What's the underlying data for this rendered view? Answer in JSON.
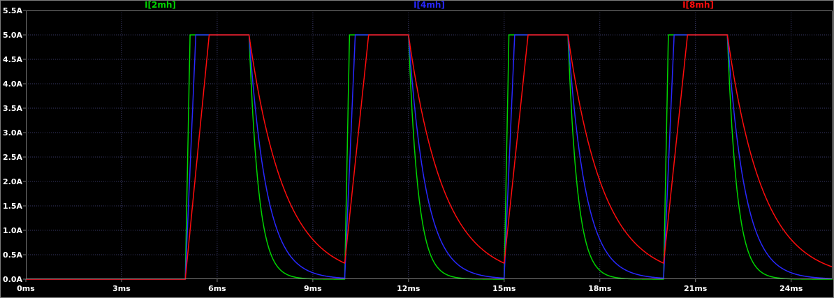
{
  "window": {
    "background": "#000000",
    "border_color": "#7d7d7d",
    "grid_color": "#3a3a68",
    "tick_color": "#7d7d7d",
    "text_color": "#ffffff"
  },
  "chart_data": {
    "type": "line",
    "title": "",
    "xlabel": "",
    "ylabel": "",
    "x_unit": "ms",
    "y_unit": "A",
    "xlim": [
      0,
      25.3
    ],
    "ylim": [
      0,
      5.5
    ],
    "x_ticks": [
      0,
      3,
      6,
      9,
      12,
      15,
      18,
      21,
      24
    ],
    "x_tick_labels": [
      "0ms",
      "3ms",
      "6ms",
      "9ms",
      "12ms",
      "15ms",
      "18ms",
      "21ms",
      "24ms"
    ],
    "y_ticks": [
      0,
      0.5,
      1,
      1.5,
      2,
      2.5,
      3,
      3.5,
      4,
      4.5,
      5,
      5.5
    ],
    "y_tick_labels": [
      "0.0A",
      "0.5A",
      "1.0A",
      "1.5A",
      "2.0A",
      "2.5A",
      "3.0A",
      "3.5A",
      "4.0A",
      "4.5A",
      "5.0A",
      "5.5A"
    ],
    "grid": true,
    "legend_position": "top",
    "series": [
      {
        "name": "I[2mh]",
        "color": "#00d400",
        "amplitude_a": 5.0,
        "baseline_a": 0.0,
        "pulse_start_ms": [
          5,
          10,
          15,
          20
        ],
        "plateau_end_ms": [
          7,
          12,
          17,
          22
        ],
        "rise_time_ms": 0.15,
        "decay_tau_ms": 0.3
      },
      {
        "name": "I[4mh]",
        "color": "#2828ff",
        "amplitude_a": 5.0,
        "baseline_a": 0.0,
        "pulse_start_ms": [
          5,
          10,
          15,
          20
        ],
        "plateau_end_ms": [
          7,
          12,
          17,
          22
        ],
        "rise_time_ms": 0.33,
        "decay_tau_ms": 0.55
      },
      {
        "name": "I[8mh]",
        "color": "#ff0c0c",
        "amplitude_a": 5.0,
        "baseline_a": 0.0,
        "pulse_start_ms": [
          5,
          10,
          15,
          20
        ],
        "plateau_end_ms": [
          7,
          12,
          17,
          22
        ],
        "rise_time_ms": 0.75,
        "decay_tau_ms": 1.1
      }
    ]
  }
}
